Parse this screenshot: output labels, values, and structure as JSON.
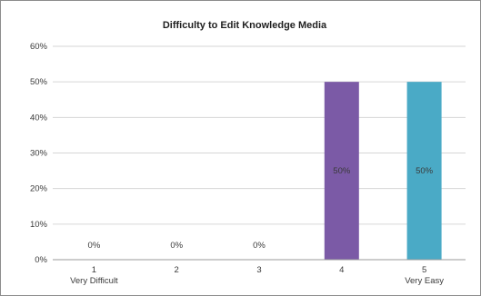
{
  "chart_data": {
    "type": "bar",
    "title": "Difficulty  to Edit Knowledge  Media",
    "xlabel": "",
    "ylabel": "",
    "categories": [
      "1",
      "2",
      "3",
      "4",
      "5"
    ],
    "category_sublabels": [
      "Very Difficult",
      "",
      "",
      "",
      "Very Easy"
    ],
    "values": [
      0,
      0,
      0,
      50,
      50
    ],
    "data_labels": [
      "0%",
      "0%",
      "0%",
      "50%",
      "50%"
    ],
    "bar_colors": [
      "#7b5aa6",
      "#7b5aa6",
      "#7b5aa6",
      "#7b5aa6",
      "#4aaac6"
    ],
    "ylim": [
      0,
      60
    ],
    "yticks": [
      0,
      10,
      20,
      30,
      40,
      50,
      60
    ],
    "ytick_labels": [
      "0%",
      "10%",
      "20%",
      "30%",
      "40%",
      "50%",
      "60%"
    ],
    "grid": true,
    "legend": "none"
  }
}
